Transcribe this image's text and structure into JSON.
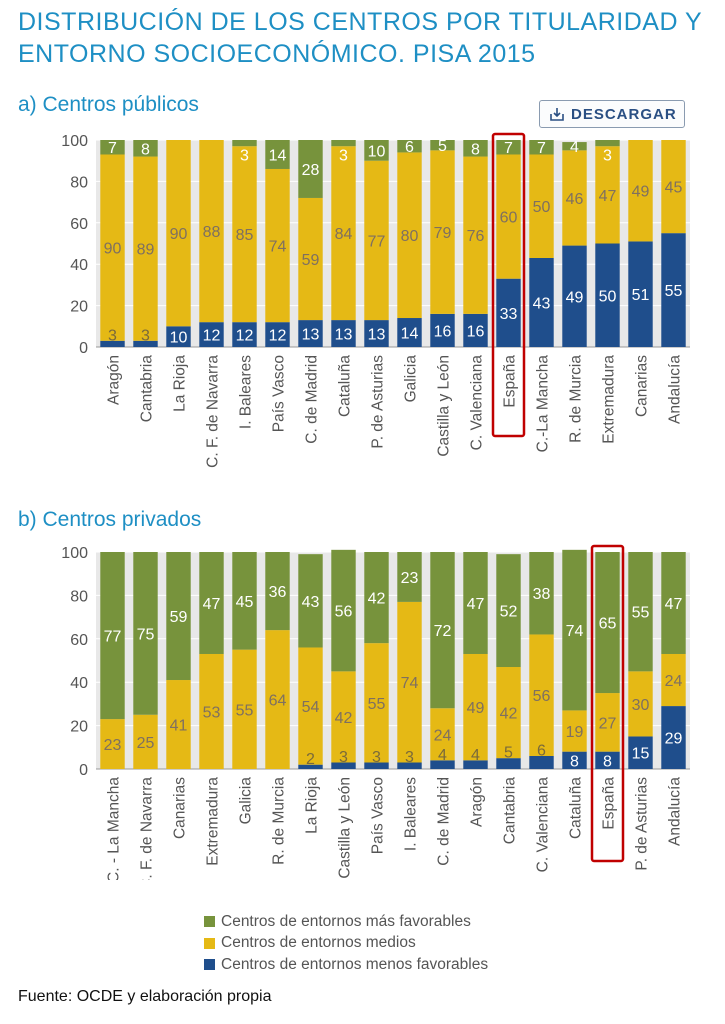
{
  "title": "DISTRIBUCIÓN DE LOS CENTROS POR TITULARIDAD Y ENTORNO SOCIOECONÓMICO. PISA 2015",
  "download_label": "DESCARGAR",
  "source": "Fuente: OCDE y elaboración propia",
  "legend": [
    {
      "label": "Centros de entornos más favorables",
      "color": "#77933c"
    },
    {
      "label": "Centros de entornos medios",
      "color": "#e5b915"
    },
    {
      "label": "Centros de entornos menos favorables",
      "color": "#1f4e8c"
    }
  ],
  "colors": {
    "favorable": "#77933c",
    "medio": "#e5b915",
    "desfavorable": "#1f4e8c",
    "highlight": "#c00000",
    "grid": "#d0d0d0",
    "plot_bg": "#e8e8e8"
  },
  "chart_data": [
    {
      "type": "bar",
      "stacked": true,
      "title": "a) Centros públicos",
      "ylim": [
        0,
        100
      ],
      "yticks": [
        0,
        20,
        40,
        60,
        80,
        100
      ],
      "grid": true,
      "highlight": "España",
      "categories": [
        "Aragón",
        "Cantabria",
        "La Rioja",
        "C. F. de Navarra",
        "I. Baleares",
        "País Vasco",
        "C. de Madrid",
        "Cataluña",
        "P. de Asturias",
        "Galicia",
        "Castilla y León",
        "C. Valenciana",
        "España",
        "C.-La Mancha",
        "R. de Murcia",
        "Extremadura",
        "Canarias",
        "Andalucía"
      ],
      "series": [
        {
          "name": "Centros de entornos menos favorables",
          "key": "desfavorable",
          "values": [
            3,
            3,
            10,
            12,
            12,
            12,
            13,
            13,
            13,
            14,
            16,
            16,
            33,
            43,
            49,
            50,
            51,
            55
          ]
        },
        {
          "name": "Centros de entornos medios",
          "key": "medio",
          "values": [
            90,
            89,
            90,
            88,
            85,
            74,
            59,
            84,
            77,
            80,
            79,
            76,
            60,
            50,
            46,
            47,
            49,
            45
          ]
        },
        {
          "name": "Centros de entornos más favorables",
          "key": "favorable",
          "values": [
            7,
            8,
            0,
            0,
            3,
            14,
            28,
            3,
            10,
            6,
            5,
            8,
            7,
            7,
            4,
            3,
            0,
            0
          ]
        }
      ],
      "labels": {
        "desfavorable": [
          "3",
          "3",
          "10",
          "12",
          "12",
          "12",
          "13",
          "13",
          "13",
          "14",
          "16",
          "16",
          "33",
          "43",
          "49",
          "50",
          "51",
          "55"
        ],
        "medio": [
          "90",
          "89",
          "90",
          "88",
          "85",
          "74",
          "59",
          "84",
          "77",
          "80",
          "79",
          "76",
          "60",
          "50",
          "46",
          "47",
          "49",
          "45"
        ],
        "favorable": [
          "7",
          "8",
          "",
          "",
          "",
          "14",
          "28",
          "",
          "10",
          "6",
          "5",
          "8",
          "7",
          "7",
          "4",
          "",
          "",
          ""
        ],
        "favorable_in_medio": [
          "",
          "",
          "",
          "",
          "3",
          "",
          "",
          "3",
          "",
          "",
          "",
          "",
          "",
          "",
          "",
          "3",
          "",
          ""
        ]
      }
    },
    {
      "type": "bar",
      "stacked": true,
      "title": "b) Centros privados",
      "ylim": [
        0,
        100
      ],
      "yticks": [
        0,
        20,
        40,
        60,
        80,
        100
      ],
      "grid": true,
      "highlight": "España",
      "categories": [
        "C. - La Mancha",
        "C. F. de Navarra",
        "Canarias",
        "Extremadura",
        "Galicia",
        "R. de Murcia",
        "La Rioja",
        "Castilla y León",
        "País Vasco",
        "I. Baleares",
        "C. de Madrid",
        "Aragón",
        "Cantabria",
        "C. Valenciana",
        "Cataluña",
        "España",
        "P. de Asturias",
        "Andalucía"
      ],
      "series": [
        {
          "name": "Centros de entornos menos favorables",
          "key": "desfavorable",
          "values": [
            0,
            0,
            0,
            0,
            0,
            0,
            2,
            3,
            3,
            3,
            4,
            4,
            5,
            6,
            8,
            8,
            15,
            29
          ]
        },
        {
          "name": "Centros de entornos medios",
          "key": "medio",
          "values": [
            23,
            25,
            41,
            53,
            55,
            64,
            54,
            42,
            55,
            74,
            24,
            49,
            42,
            56,
            19,
            27,
            30,
            24
          ]
        },
        {
          "name": "Centros de entornos más favorables",
          "key": "favorable",
          "values": [
            77,
            75,
            59,
            47,
            45,
            36,
            43,
            56,
            42,
            23,
            72,
            47,
            52,
            38,
            74,
            65,
            55,
            47
          ]
        }
      ],
      "labels": {
        "desfavorable": [
          "",
          "",
          "",
          "",
          "",
          "",
          "2",
          "3",
          "3",
          "3",
          "4",
          "4",
          "5",
          "6",
          "8",
          "8",
          "15",
          "29"
        ],
        "medio": [
          "23",
          "25",
          "41",
          "53",
          "55",
          "64",
          "54",
          "42",
          "55",
          "74",
          "24",
          "49",
          "42",
          "56",
          "19",
          "27",
          "30",
          "24"
        ],
        "favorable": [
          "77",
          "75",
          "59",
          "47",
          "45",
          "36",
          "43",
          "56",
          "42",
          "23",
          "72",
          "47",
          "52",
          "38",
          "74",
          "65",
          "55",
          "47"
        ],
        "favorable_in_medio": [
          "",
          "",
          "",
          "",
          "",
          "",
          "",
          "",
          "",
          "",
          "",
          "",
          "",
          "",
          "",
          "",
          "",
          ""
        ]
      }
    }
  ]
}
